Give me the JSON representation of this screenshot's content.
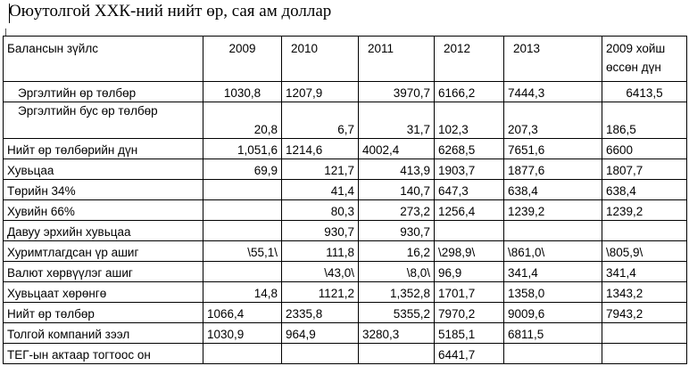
{
  "title": "Оюутолгой  ХХК-ний нийт  өр,  сая ам доллар",
  "columns": [
    "Балансын зүйлс",
    "2009",
    "2010",
    "2011",
    "2012",
    "2013",
    "2009  хойш өссөн дүн"
  ],
  "rows": [
    {
      "label": "Эргэлтийн  өр төлбөр",
      "cells": [
        "1030,8",
        "1207,9",
        "3970,7",
        "6166,2",
        "7444,3",
        "6413,5"
      ]
    },
    {
      "label": "Эргэлтийн  бус өр төлбөр",
      "cells": [
        "20,8",
        "6,7",
        "31,7",
        "102,3",
        "207,3",
        "186,5"
      ]
    },
    {
      "label": "Нийт өр төлбөрийн  дүн",
      "cells": [
        "1,051,6",
        "1214,6",
        "4002,4",
        "6268,5",
        "7651,6",
        "6600"
      ]
    },
    {
      "label": "Хувьцаа",
      "cells": [
        "69,9",
        "121,7",
        "413,9",
        "1903,7",
        "1877,6",
        "1807,7"
      ]
    },
    {
      "label": "Төрийн 34%",
      "cells": [
        "",
        "41,4",
        "140,7",
        "647,3",
        "638,4",
        "638,4"
      ]
    },
    {
      "label": "Хувийн 66%",
      "cells": [
        "",
        "80,3",
        "273,2",
        "1256,4",
        "1239,2",
        "1239,2"
      ]
    },
    {
      "label": "Давуу эрхийн хувьцаа",
      "cells": [
        "",
        "930,7",
        "930,7",
        "",
        "",
        ""
      ]
    },
    {
      "label": "Хуримтлагдсан  үр ашиг",
      "cells": [
        "\\55,1\\",
        "111,8",
        "16,2",
        "\\298,9\\",
        "\\861,0\\",
        "\\805,9\\"
      ]
    },
    {
      "label": "Валют хөрвүүлэг ашиг",
      "cells": [
        "",
        "\\43,0\\",
        "\\8,0\\",
        "96,9",
        "341,4",
        "341,4"
      ]
    },
    {
      "label": "Хувьцаат хөрөнгө",
      "cells": [
        "14,8",
        "1121,2",
        "1,352,8",
        "1701,7",
        "1358,0",
        "1343,2"
      ]
    },
    {
      "label": "Нийт  өр төлбөр",
      "cells": [
        "1066,4",
        "2335,8",
        "5355,2",
        "7970,2",
        "9009,6",
        "7943,2"
      ]
    },
    {
      "label": "Толгой компаний зээл",
      "cells": [
        "1030,9",
        "964,9",
        "3280,3",
        "5185,1",
        "6811,5",
        ""
      ]
    },
    {
      "label": "ТЕГ-ын актаар тогтоос он",
      "cells": [
        "",
        "",
        "",
        "6441,7",
        "",
        ""
      ]
    }
  ]
}
